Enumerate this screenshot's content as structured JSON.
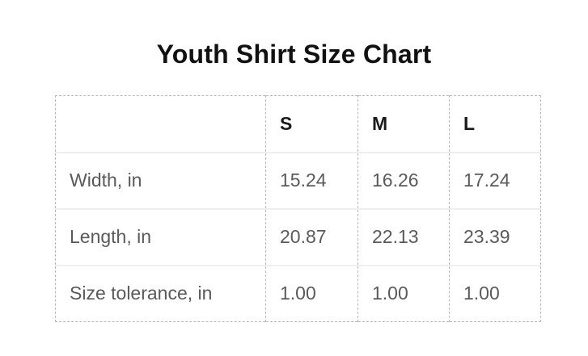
{
  "title": "Youth Shirt Size Chart",
  "colors": {
    "background": "#ffffff",
    "title_text": "#111111",
    "header_text": "#1a1a1a",
    "body_text": "#5a5a5a",
    "dashed_border": "#b9b9b9",
    "row_separator": "#efefef"
  },
  "chart_data": {
    "type": "table",
    "title": "Youth Shirt Size Chart",
    "columns": [
      "",
      "S",
      "M",
      "L"
    ],
    "rows": [
      {
        "label": "Width, in",
        "values": [
          "15.24",
          "16.26",
          "17.24"
        ]
      },
      {
        "label": "Length, in",
        "values": [
          "20.87",
          "22.13",
          "23.39"
        ]
      },
      {
        "label": "Size tolerance, in",
        "values": [
          "1.00",
          "1.00",
          "1.00"
        ]
      }
    ]
  }
}
